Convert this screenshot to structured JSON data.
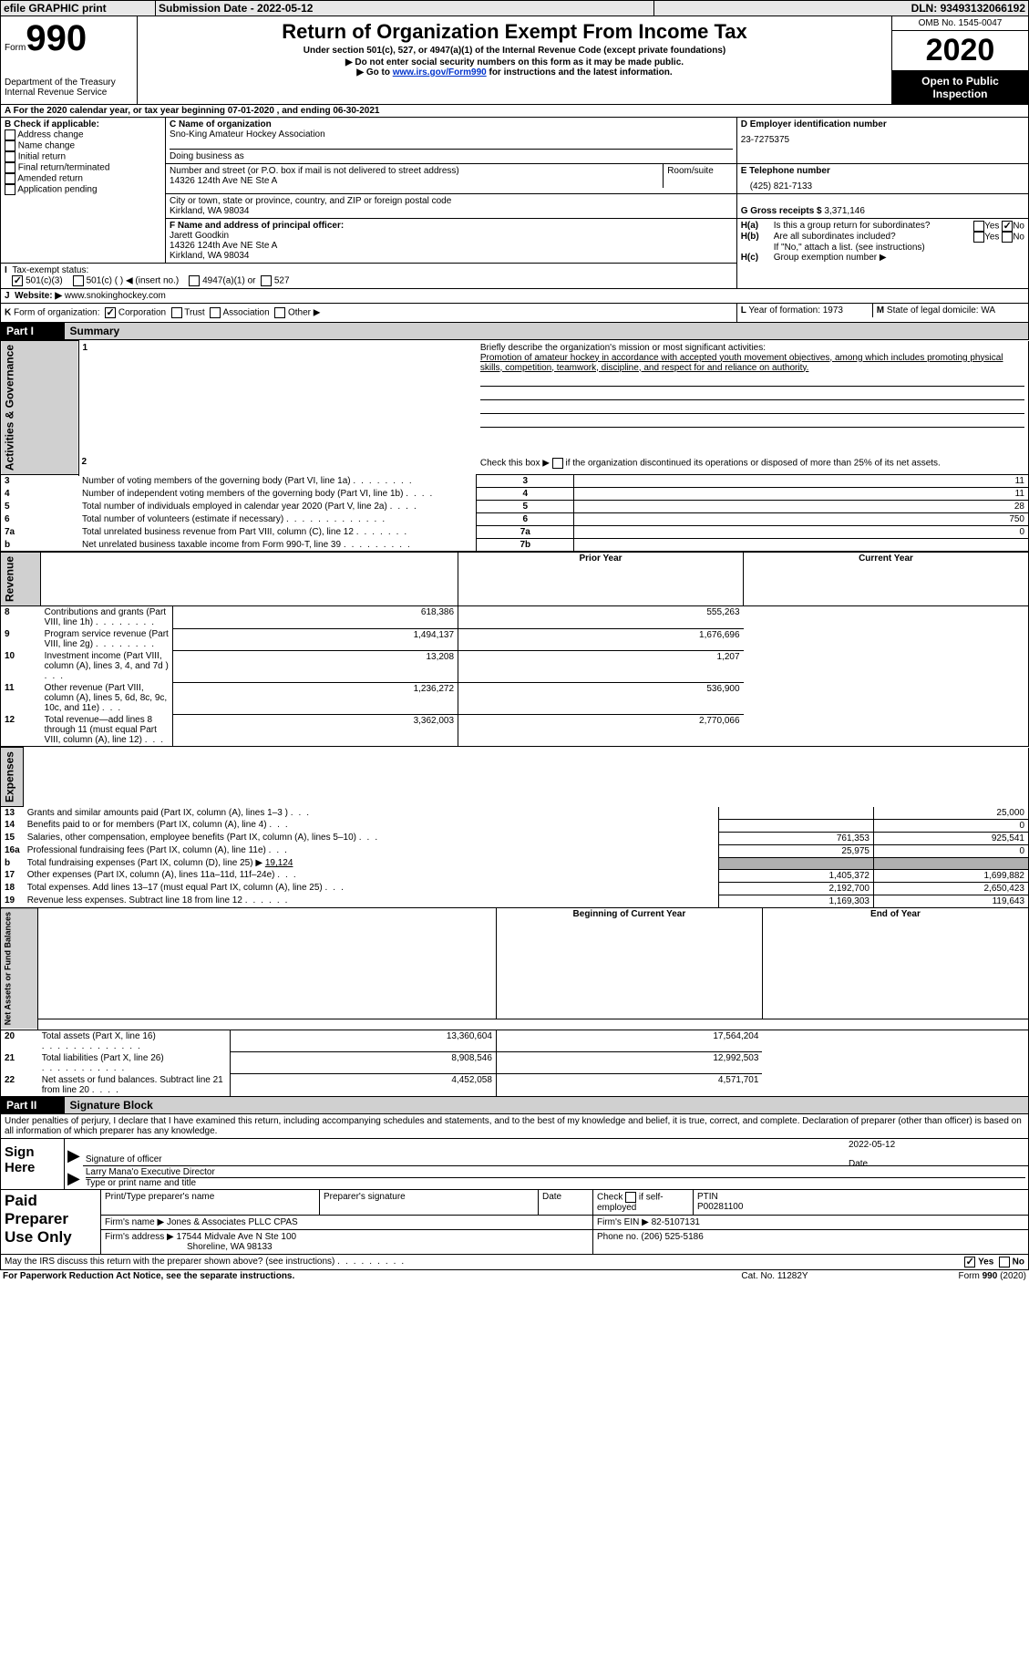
{
  "topbar": {
    "efile_label": "efile GRAPHIC print",
    "submission_label": "Submission Date - ",
    "submission_date": "2022-05-12",
    "dln_label": "DLN: ",
    "dln": "93493132066192"
  },
  "header": {
    "form_label": "Form",
    "form_number": "990",
    "dept1": "Department of the Treasury",
    "dept2": "Internal Revenue Service",
    "title": "Return of Organization Exempt From Income Tax",
    "subtitle": "Under section 501(c), 527, or 4947(a)(1) of the Internal Revenue Code (except private foundations)",
    "bullet1": "▶ Do not enter social security numbers on this form as it may be made public.",
    "bullet2_pre": "▶ Go to ",
    "bullet2_link": "www.irs.gov/Form990",
    "bullet2_post": " for instructions and the latest information.",
    "omb_label": "OMB No. 1545-0047",
    "year": "2020",
    "open_public1": "Open to Public",
    "open_public2": "Inspection"
  },
  "bar_a": {
    "prefix": "A",
    "text_1": "For the 2020 calendar year, or tax year beginning ",
    "date1": "07-01-2020",
    "text_2": " , and ending ",
    "date2": "06-30-2021"
  },
  "box_b": {
    "label": "B Check if applicable:",
    "items": [
      "Address change",
      "Name change",
      "Initial return",
      "Final return/terminated",
      "Amended return",
      "Application pending"
    ],
    "checked": [
      false,
      false,
      false,
      false,
      false,
      false
    ],
    "extra_left": "O"
  },
  "box_c": {
    "label": "C Name of organization",
    "org_name": "Sno-King Amateur Hockey Association",
    "dba_label": "Doing business as",
    "dba": "",
    "addr_label": "Number and street (or P.O. box if mail is not delivered to street address)",
    "room_label": "Room/suite",
    "street": "14326 124th Ave NE Ste A",
    "city_label": "City or town, state or province, country, and ZIP or foreign postal code",
    "city": "Kirkland, WA  98034"
  },
  "box_d": {
    "label": "D Employer identification number",
    "ein": "23-7275375"
  },
  "box_e": {
    "label": "E Telephone number",
    "phone": "(425) 821-7133"
  },
  "box_g": {
    "label": "G Gross receipts $ ",
    "amount": "3,371,146"
  },
  "box_f": {
    "label": "F Name and address of principal officer:",
    "name": "Jarett Goodkin",
    "line1": "14326 124th Ave NE Ste A",
    "line2": "Kirkland, WA  98034"
  },
  "box_h": {
    "a_label": "H(a)",
    "a_text": "Is this a group return for subordinates?",
    "a_yes": "Yes",
    "a_no": "No",
    "a_val": "no",
    "b_label": "H(b)",
    "b_text": "Are all subordinates included?",
    "b_yes": "Yes",
    "b_no": "No",
    "b_note": "If \"No,\" attach a list. (see instructions)",
    "c_label": "H(c)",
    "c_text": "Group exemption number ▶"
  },
  "box_i": {
    "label": "I",
    "text": "Tax-exempt status:",
    "opts": [
      "501(c)(3)",
      "501(c) (  ) ◀ (insert no.)",
      "4947(a)(1) or",
      "527"
    ],
    "checked": [
      true,
      false,
      false,
      false
    ]
  },
  "box_j": {
    "label": "J",
    "text": "Website: ▶  ",
    "site": "www.snokinghockey.com"
  },
  "box_k": {
    "label": "K",
    "text": "Form of organization:",
    "opts": [
      "Corporation",
      "Trust",
      "Association",
      "Other ▶"
    ],
    "checked": [
      true,
      false,
      false,
      false
    ]
  },
  "box_l": {
    "label": "L",
    "text": "Year of formation: ",
    "val": "1973"
  },
  "box_m": {
    "label": "M",
    "text": "State of legal domicile: ",
    "val": "WA"
  },
  "part1": {
    "tag": "Part I",
    "title": "Summary"
  },
  "sections": {
    "gov": "Activities & Governance",
    "rev": "Revenue",
    "exp": "Expenses",
    "net": "Net Assets or Fund Balances"
  },
  "s1": {
    "q1_label": "1",
    "q1_text": "Briefly describe the organization's mission or most significant activities:",
    "q1_val": "Promotion of amateur hockey in accordance with accepted youth movement objectives, among which includes promoting physical skills, competition, teamwork, discipline, and respect for and reliance on authority.",
    "q2_label": "2",
    "q2_text_pre": "Check this box ▶ ",
    "q2_text_post": " if the organization discontinued its operations or disposed of more than 25% of its net assets.",
    "rows": [
      {
        "n": "3",
        "text": "Number of voting members of the governing body (Part VI, line 1a)",
        "box": "3",
        "val": "11"
      },
      {
        "n": "4",
        "text": "Number of independent voting members of the governing body (Part VI, line 1b)",
        "box": "4",
        "val": "11"
      },
      {
        "n": "5",
        "text": "Total number of individuals employed in calendar year 2020 (Part V, line 2a)",
        "box": "5",
        "val": "28"
      },
      {
        "n": "6",
        "text": "Total number of volunteers (estimate if necessary)",
        "box": "6",
        "val": "750"
      },
      {
        "n": "7a",
        "text": "Total unrelated business revenue from Part VIII, column (C), line 12",
        "box": "7a",
        "val": "0"
      },
      {
        "n": "b",
        "text": "Net unrelated business taxable income from Form 990-T, line 39",
        "box": "7b",
        "val": ""
      }
    ]
  },
  "hdrs": {
    "prior": "Prior Year",
    "current": "Current Year",
    "begin": "Beginning of Current Year",
    "end": "End of Year"
  },
  "rev_rows": [
    {
      "n": "8",
      "text": "Contributions and grants (Part VIII, line 1h)",
      "p": "618,386",
      "c": "555,263"
    },
    {
      "n": "9",
      "text": "Program service revenue (Part VIII, line 2g)",
      "p": "1,494,137",
      "c": "1,676,696"
    },
    {
      "n": "10",
      "text": "Investment income (Part VIII, column (A), lines 3, 4, and 7d )",
      "p": "13,208",
      "c": "1,207"
    },
    {
      "n": "11",
      "text": "Other revenue (Part VIII, column (A), lines 5, 6d, 8c, 9c, 10c, and 11e)",
      "p": "1,236,272",
      "c": "536,900"
    },
    {
      "n": "12",
      "text": "Total revenue—add lines 8 through 11 (must equal Part VIII, column (A), line 12)",
      "p": "3,362,003",
      "c": "2,770,066"
    }
  ],
  "exp_rows": [
    {
      "n": "13",
      "text": "Grants and similar amounts paid (Part IX, column (A), lines 1–3 )",
      "p": "",
      "c": "25,000"
    },
    {
      "n": "14",
      "text": "Benefits paid to or for members (Part IX, column (A), line 4)",
      "p": "",
      "c": "0"
    },
    {
      "n": "15",
      "text": "Salaries, other compensation, employee benefits (Part IX, column (A), lines 5–10)",
      "p": "761,353",
      "c": "925,541"
    },
    {
      "n": "16a",
      "text": "Professional fundraising fees (Part IX, column (A), line 11e)",
      "p": "25,975",
      "c": "0"
    },
    {
      "n": "b",
      "text_pre": "Total fundraising expenses (Part IX, column (D), line 25) ▶ ",
      "text_val": "19,124",
      "p": "",
      "c": "",
      "shade": true
    },
    {
      "n": "17",
      "text": "Other expenses (Part IX, column (A), lines 11a–11d, 11f–24e)",
      "p": "1,405,372",
      "c": "1,699,882"
    },
    {
      "n": "18",
      "text": "Total expenses. Add lines 13–17 (must equal Part IX, column (A), line 25)",
      "p": "2,192,700",
      "c": "2,650,423"
    },
    {
      "n": "19",
      "text": "Revenue less expenses. Subtract line 18 from line 12",
      "p": "1,169,303",
      "c": "119,643"
    }
  ],
  "net_rows": [
    {
      "n": "20",
      "text": "Total assets (Part X, line 16)",
      "p": "13,360,604",
      "c": "17,564,204"
    },
    {
      "n": "21",
      "text": "Total liabilities (Part X, line 26)",
      "p": "8,908,546",
      "c": "12,992,503"
    },
    {
      "n": "22",
      "text": "Net assets or fund balances. Subtract line 21 from line 20",
      "p": "4,452,058",
      "c": "4,571,701"
    }
  ],
  "part2": {
    "tag": "Part II",
    "title": "Signature Block"
  },
  "sig": {
    "disclaimer": "Under penalties of perjury, I declare that I have examined this return, including accompanying schedules and statements, and to the best of my knowledge and belief, it is true, correct, and complete. Declaration of preparer (other than officer) is based on all information of which preparer has any knowledge.",
    "sign_here": "Sign Here",
    "sig_officer": "Signature of officer",
    "date_label": "Date",
    "sig_date": "2022-05-12",
    "name_title": "Larry Mana'o  Executive Director",
    "type_print": "Type or print name and title"
  },
  "prep": {
    "paid": "Paid Preparer Use Only",
    "print_label": "Print/Type preparer's name",
    "sig_label": "Preparer's signature",
    "date_label": "Date",
    "check_label": "Check",
    "if_self": "if self-employed",
    "ptin_label": "PTIN",
    "ptin": "P00281100",
    "firm_name_label": "Firm's name  ▶",
    "firm_name": "Jones & Associates PLLC CPAS",
    "firm_ein_label": "Firm's EIN ▶",
    "firm_ein": "82-5107131",
    "firm_addr_label": "Firm's address ▶",
    "firm_addr1": "17544 Midvale Ave N Ste 100",
    "firm_addr2": "Shoreline, WA  98133",
    "phone_label": "Phone no. ",
    "phone": "(206) 525-5186"
  },
  "footer": {
    "discuss": "May the IRS discuss this return with the preparer shown above? (see instructions)",
    "yes": "Yes",
    "no": "No",
    "yes_checked": true,
    "paperwork": "For Paperwork Reduction Act Notice, see the separate instructions.",
    "cat": "Cat. No. 11282Y",
    "form": "Form 990 (2020)"
  }
}
